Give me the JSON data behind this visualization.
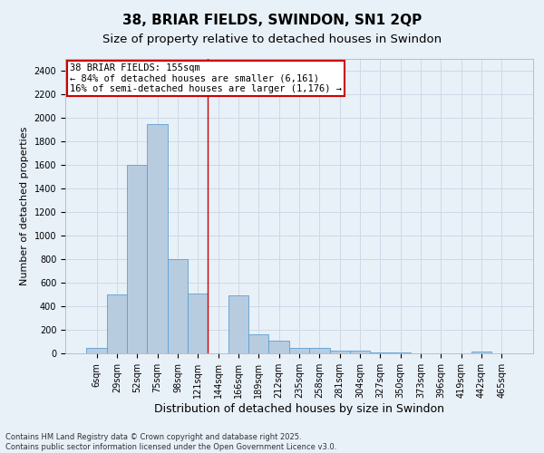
{
  "title": "38, BRIAR FIELDS, SWINDON, SN1 2QP",
  "subtitle": "Size of property relative to detached houses in Swindon",
  "xlabel": "Distribution of detached houses by size in Swindon",
  "ylabel": "Number of detached properties",
  "footer_line1": "Contains HM Land Registry data © Crown copyright and database right 2025.",
  "footer_line2": "Contains public sector information licensed under the Open Government Licence v3.0.",
  "bar_labels": [
    "6sqm",
    "29sqm",
    "52sqm",
    "75sqm",
    "98sqm",
    "121sqm",
    "144sqm",
    "166sqm",
    "189sqm",
    "212sqm",
    "235sqm",
    "258sqm",
    "281sqm",
    "304sqm",
    "327sqm",
    "350sqm",
    "373sqm",
    "396sqm",
    "419sqm",
    "442sqm",
    "465sqm"
  ],
  "bar_values": [
    50,
    500,
    1600,
    1950,
    800,
    510,
    0,
    490,
    160,
    110,
    50,
    50,
    20,
    20,
    8,
    5,
    3,
    2,
    2,
    15,
    2
  ],
  "bar_color": "#b8ccdf",
  "bar_edgecolor": "#5a9fd4",
  "background_color": "#e8f0f8",
  "grid_color": "#d0d8e8",
  "annotation_line1": "38 BRIAR FIELDS: 155sqm",
  "annotation_line2": "← 84% of detached houses are smaller (6,161)",
  "annotation_line3": "16% of semi-detached houses are larger (1,176) →",
  "annotation_box_color": "#ffffff",
  "annotation_box_edgecolor": "#cc0000",
  "ylim": [
    0,
    2500
  ],
  "yticks": [
    0,
    200,
    400,
    600,
    800,
    1000,
    1200,
    1400,
    1600,
    1800,
    2000,
    2200,
    2400
  ],
  "vline_color": "#cc0000",
  "vline_pos": 5.5,
  "title_fontsize": 11,
  "subtitle_fontsize": 9.5,
  "tick_fontsize": 7,
  "ylabel_fontsize": 8,
  "xlabel_fontsize": 9,
  "footer_fontsize": 6,
  "annotation_fontsize": 7.5
}
